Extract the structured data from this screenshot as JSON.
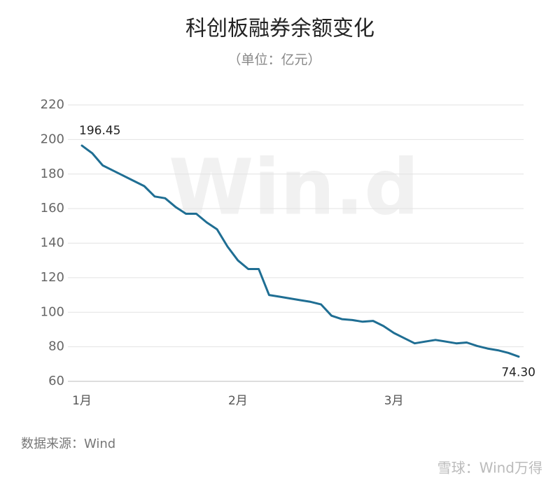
{
  "chart_data": {
    "type": "line",
    "title": "科创板融券余额变化",
    "subtitle": "（单位：亿元）",
    "source": "数据来源：Wind",
    "watermark": "Win.d",
    "footer": "雪球：Wind万得",
    "categories": [
      "1月",
      null,
      null,
      null,
      null,
      null,
      null,
      null,
      null,
      null,
      null,
      null,
      null,
      null,
      null,
      "2月",
      null,
      null,
      null,
      null,
      null,
      null,
      null,
      null,
      null,
      null,
      null,
      null,
      null,
      null,
      "3月",
      null,
      null,
      null,
      null,
      null,
      null,
      null,
      null,
      null,
      null,
      null,
      null
    ],
    "values": [
      196.45,
      192,
      185,
      182,
      179,
      176,
      173,
      167,
      166,
      161,
      157,
      157,
      152,
      148,
      138,
      130,
      125,
      125,
      110,
      109,
      108,
      107,
      106,
      104.5,
      98,
      96,
      95.5,
      94.5,
      95,
      92,
      88,
      85,
      82,
      83,
      84,
      83,
      82,
      82.5,
      80.5,
      79,
      78,
      76.5,
      74.3
    ],
    "value_labels": [
      "196.45",
      null,
      null,
      null,
      null,
      null,
      null,
      null,
      null,
      null,
      null,
      null,
      null,
      null,
      null,
      null,
      null,
      null,
      null,
      null,
      null,
      null,
      null,
      null,
      null,
      null,
      null,
      null,
      null,
      null,
      null,
      null,
      null,
      null,
      null,
      null,
      null,
      null,
      null,
      null,
      null,
      null,
      "74.30"
    ],
    "color": "#1f6e93",
    "ylim": [
      60,
      220
    ],
    "yticks": [
      60,
      80,
      100,
      120,
      140,
      160,
      180,
      200,
      220
    ],
    "grid": true
  }
}
